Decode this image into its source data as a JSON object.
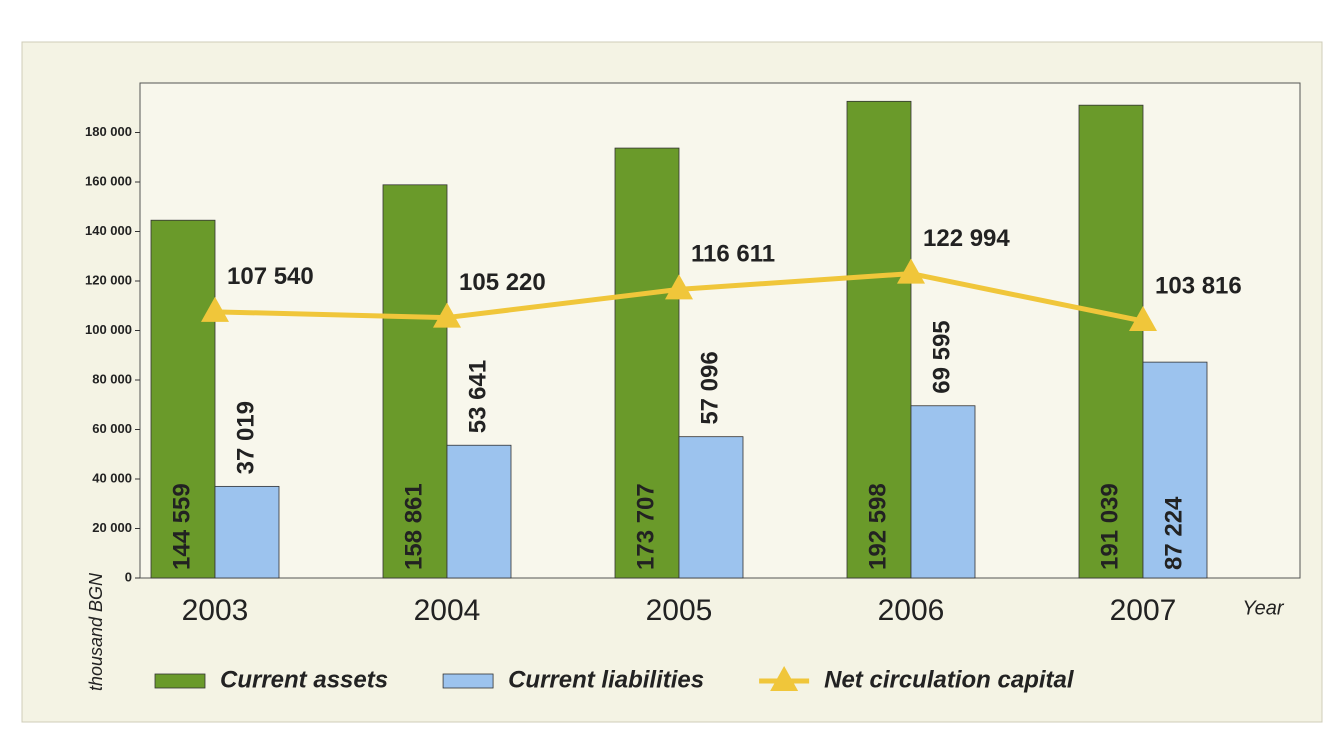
{
  "chart_data": {
    "type": "bar-line",
    "categories": [
      "2003",
      "2004",
      "2005",
      "2006",
      "2007"
    ],
    "series": [
      {
        "name": "Current assets",
        "type": "bar",
        "color": "#6a9a2a",
        "values": [
          144559,
          158861,
          173707,
          192598,
          191039
        ],
        "value_labels": [
          "144 559",
          "158 861",
          "173 707",
          "192 598",
          "191 039"
        ]
      },
      {
        "name": "Current liabilities",
        "type": "bar",
        "color": "#9cc3ee",
        "values": [
          37019,
          53641,
          57096,
          69595,
          87224
        ],
        "value_labels": [
          "37 019",
          "53 641",
          "57 096",
          "69 595",
          "87 224"
        ]
      },
      {
        "name": "Net circulation capital",
        "type": "line",
        "color": "#f0c63a",
        "values": [
          107540,
          105220,
          116611,
          122994,
          103816
        ],
        "value_labels": [
          "107 540",
          "105 220",
          "116 611",
          "122 994",
          "103 816"
        ]
      }
    ],
    "ylabel": "thousand BGN",
    "xlabel": "Year",
    "ylim": [
      0,
      200000
    ],
    "yticks": [
      0,
      {
        "value": 20000,
        "label": "20 000"
      },
      {
        "value": 40000,
        "label": "40 000"
      },
      {
        "value": 60000,
        "label": "60 000"
      },
      {
        "value": 80000,
        "label": "80 000"
      },
      {
        "value": 100000,
        "label": "100 000"
      },
      {
        "value": 120000,
        "label": "120 000"
      },
      {
        "value": 140000,
        "label": "140 000"
      },
      {
        "value": 160000,
        "label": "160 000"
      },
      {
        "value": 180000,
        "label": "180 000"
      }
    ],
    "legend": "bottom"
  }
}
